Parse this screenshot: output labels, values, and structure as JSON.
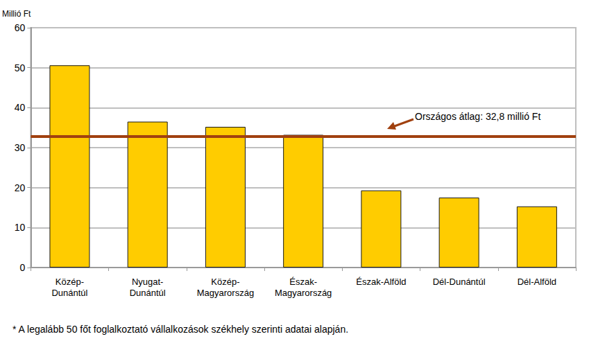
{
  "chart_data": {
    "type": "bar",
    "ylabel": "Millió Ft",
    "categories": [
      "Közép-\nDunántúl",
      "Nyugat-\nDunántúl",
      "Közép-\nMagyarország",
      "Észak-\nMagyarország",
      "Észak-Alföld",
      "Dél-Dunántúl",
      "Dél-Alföld"
    ],
    "values": [
      50.6,
      36.5,
      35.2,
      33.2,
      19.3,
      17.5,
      15.3
    ],
    "color": "#ffcc00",
    "ylim": [
      0,
      60
    ],
    "yticks": [
      0,
      10,
      20,
      30,
      40,
      50,
      60
    ],
    "grid": true,
    "reference_line": {
      "value": 32.8,
      "label": "Országos átlag: 32,8 millió Ft",
      "color": "#a0400f"
    },
    "footnote": "* A legalább 50 főt foglalkoztató vállalkozások székhely szerinti adatai alapján."
  }
}
